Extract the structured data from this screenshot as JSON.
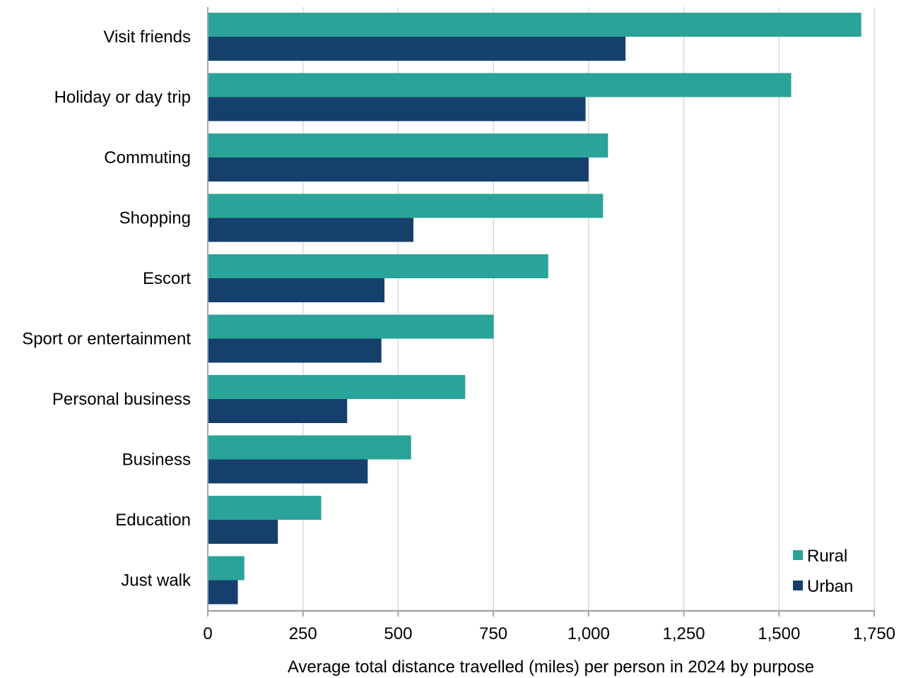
{
  "chart_data": {
    "type": "bar",
    "orientation": "horizontal",
    "title": "",
    "xlabel": "Average total distance travelled (miles) per person in 2024 by purpose",
    "ylabel": "",
    "categories": [
      "Visit friends",
      "Holiday or day trip",
      "Commuting",
      "Shopping",
      "Escort",
      "Sport or entertainment",
      "Personal business",
      "Business",
      "Education",
      "Just walk"
    ],
    "series": [
      {
        "name": "Rural",
        "color": "#2aa398",
        "values": [
          1716,
          1532,
          1051,
          1038,
          894,
          751,
          676,
          534,
          298,
          96
        ]
      },
      {
        "name": "Urban",
        "color": "#15406b",
        "values": [
          1097,
          992,
          1000,
          540,
          464,
          456,
          366,
          420,
          184,
          79
        ]
      }
    ],
    "xlim": [
      0,
      1750
    ],
    "xticks": [
      0,
      250,
      500,
      750,
      1000,
      1250,
      1500,
      1750
    ],
    "xtick_labels": [
      "0",
      "250",
      "500",
      "750",
      "1,000",
      "1,250",
      "1,500",
      "1,750"
    ],
    "grid": "vertical",
    "legend_position": "bottom-right"
  }
}
